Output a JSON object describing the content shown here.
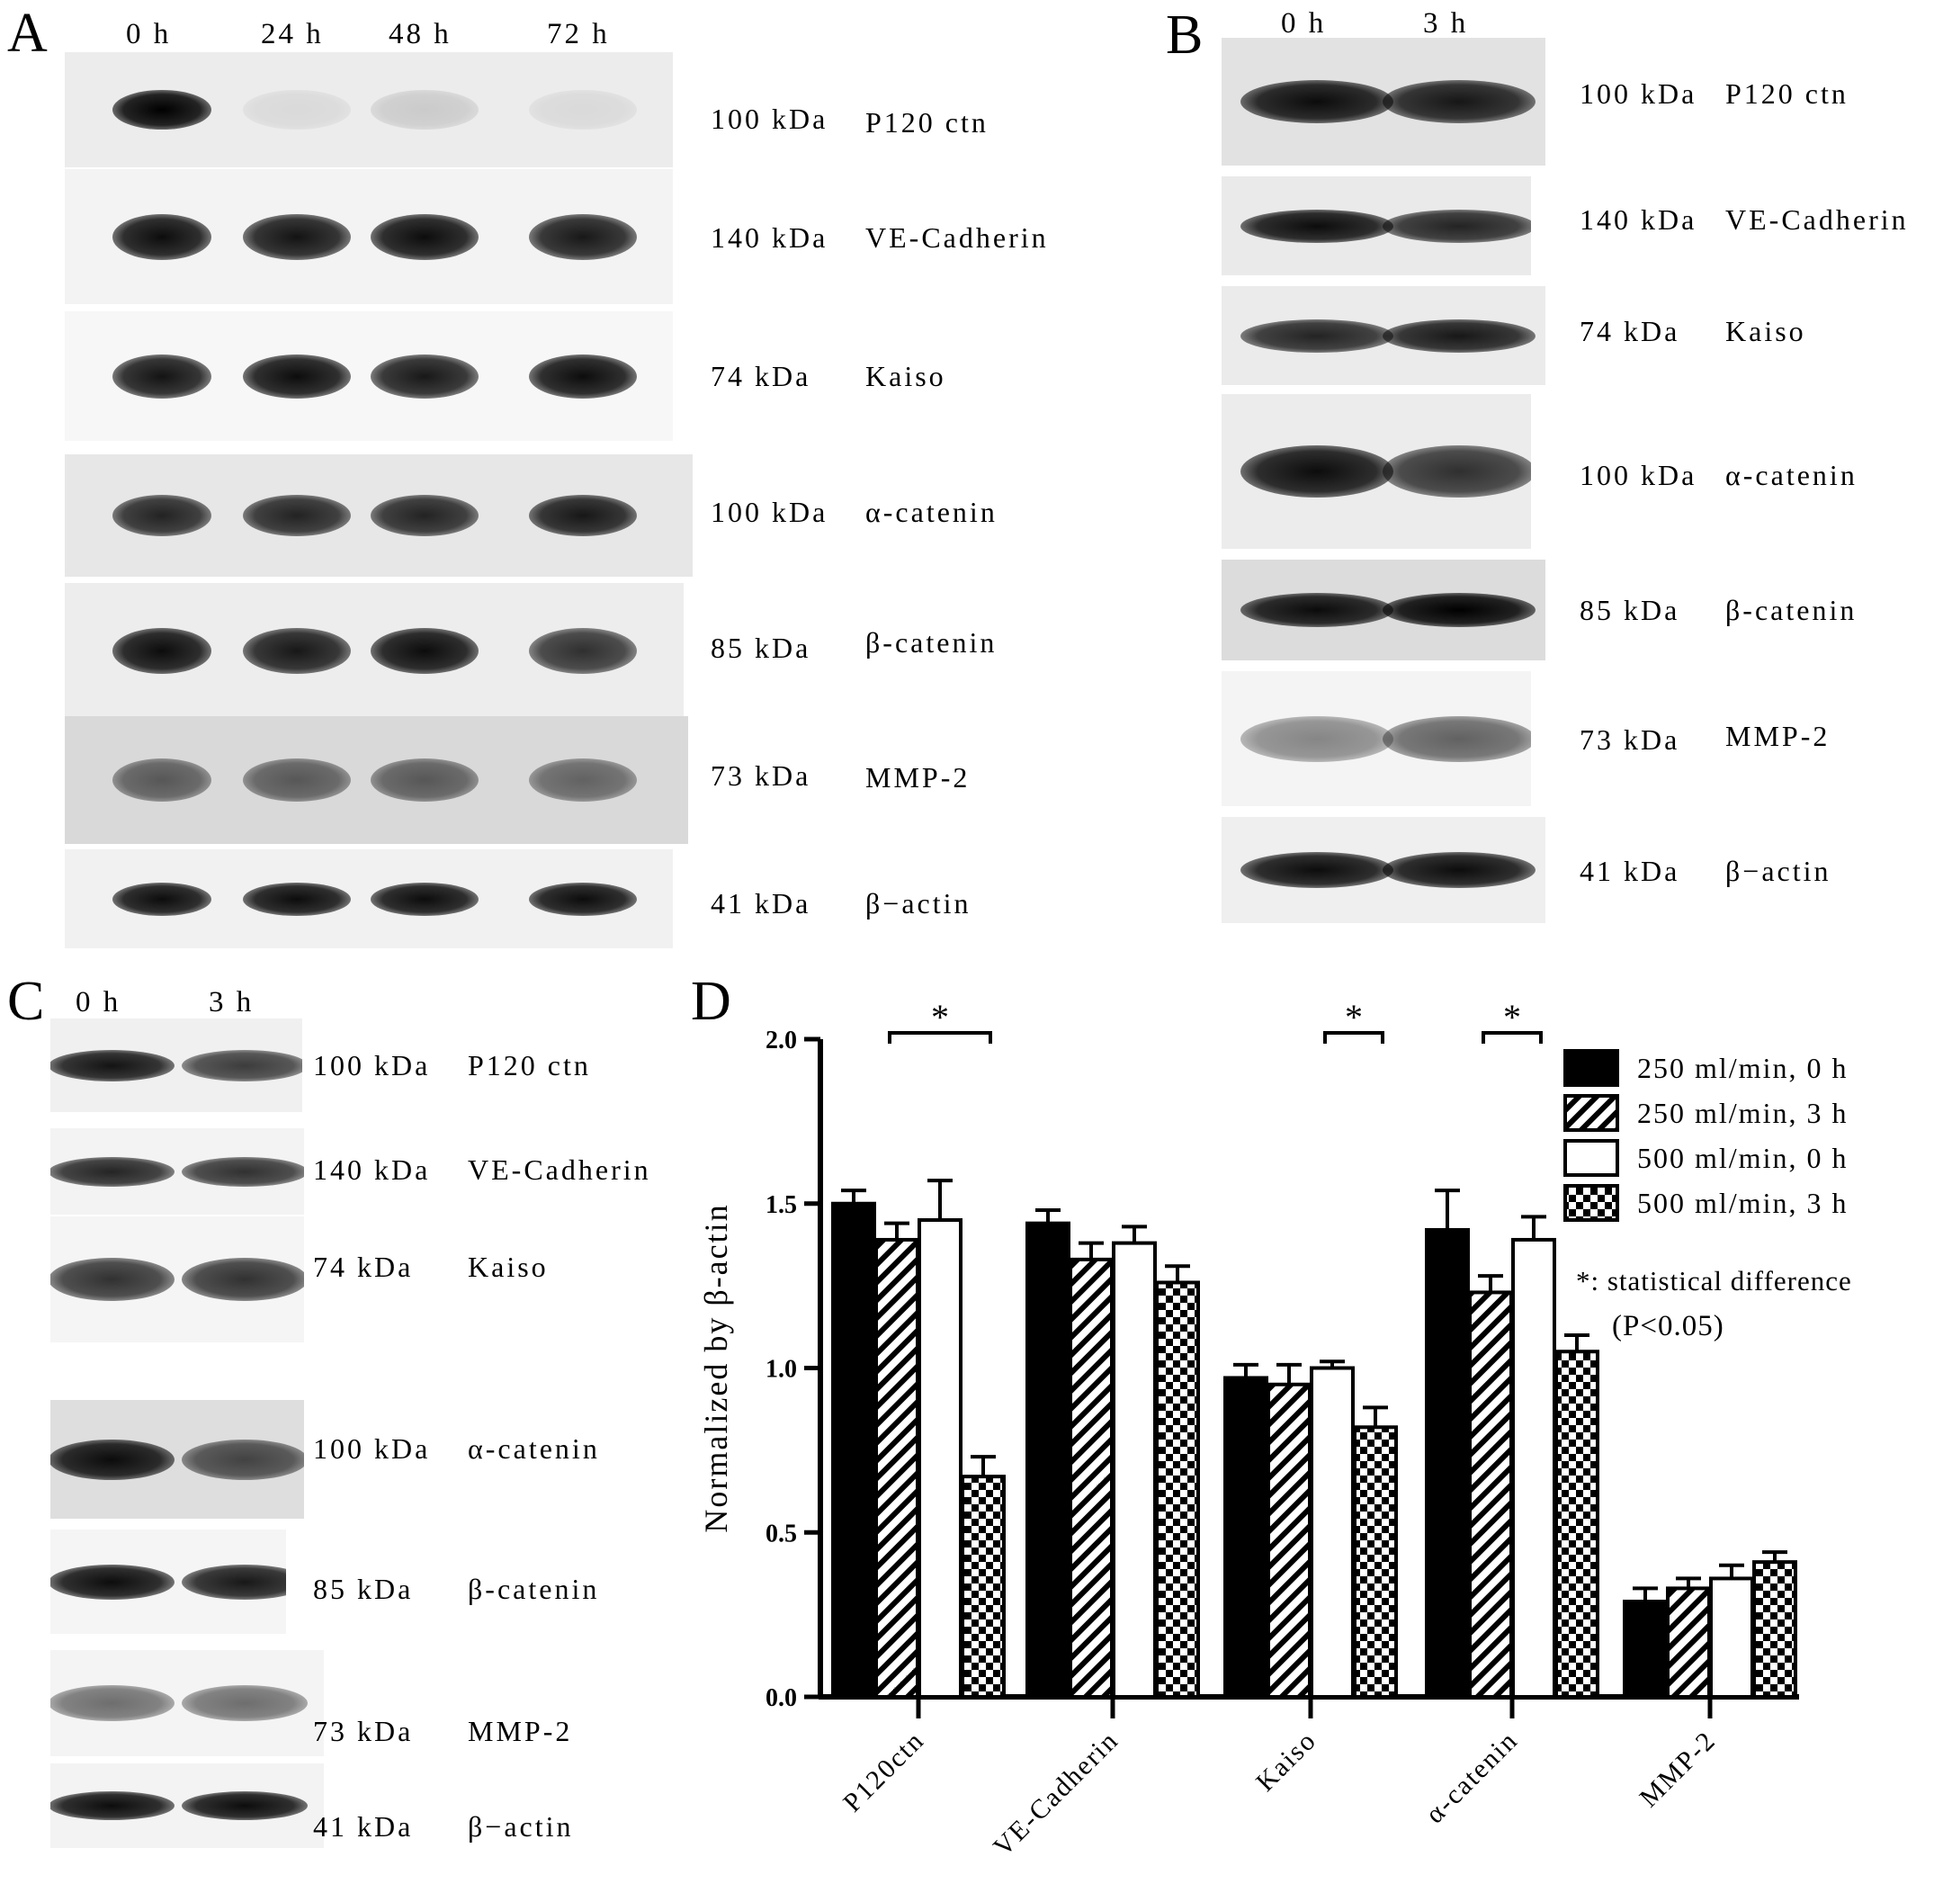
{
  "panels": {
    "A": {
      "letter": "A",
      "lanes": [
        "0 h",
        "24 h",
        "48 h",
        "72 h"
      ],
      "blots": [
        {
          "kda": "100 kDa",
          "protein": "P120 ctn",
          "bg": "#ececec",
          "band_intensity": [
            1.0,
            0.08,
            0.14,
            0.08
          ]
        },
        {
          "kda": "140 kDa",
          "protein": "VE-Cadherin",
          "bg": "#f3f3f3",
          "band_intensity": [
            0.95,
            0.92,
            0.95,
            0.9
          ]
        },
        {
          "kda": "74 kDa",
          "protein": "Kaiso",
          "bg": "#f7f7f7",
          "band_intensity": [
            0.92,
            0.95,
            0.9,
            0.95
          ]
        },
        {
          "kda": "100 kDa",
          "protein": "α-catenin",
          "bg": "#e7e7e7",
          "band_intensity": [
            0.85,
            0.85,
            0.85,
            0.9
          ]
        },
        {
          "kda": "85 kDa",
          "protein": "β-catenin",
          "bg": "#ededed",
          "band_intensity": [
            0.95,
            0.9,
            0.95,
            0.8
          ]
        },
        {
          "kda": "73 kDa",
          "protein": "MMP-2",
          "bg": "#d9d9d9",
          "band_intensity": [
            0.6,
            0.6,
            0.6,
            0.55
          ]
        },
        {
          "kda": "41 kDa",
          "protein": "β−actin",
          "bg": "#f1f1f1",
          "band_intensity": [
            0.95,
            0.95,
            0.95,
            0.95
          ]
        }
      ]
    },
    "B": {
      "letter": "B",
      "lanes": [
        "0 h",
        "3 h"
      ],
      "blots": [
        {
          "kda": "100 kDa",
          "protein": "P120 ctn",
          "bg": "#e2e2e2",
          "band_intensity": [
            0.95,
            0.9
          ]
        },
        {
          "kda": "140 kDa",
          "protein": "VE-Cadherin",
          "bg": "#eaeaea",
          "band_intensity": [
            0.95,
            0.85
          ]
        },
        {
          "kda": "74 kDa",
          "protein": "Kaiso",
          "bg": "#ebebeb",
          "band_intensity": [
            0.85,
            0.9
          ]
        },
        {
          "kda": "100 kDa",
          "protein": "α-catenin",
          "bg": "#ececec",
          "band_intensity": [
            0.95,
            0.8
          ]
        },
        {
          "kda": "85 kDa",
          "protein": "β-catenin",
          "bg": "#dcdcdc",
          "band_intensity": [
            0.95,
            1.0
          ]
        },
        {
          "kda": "73 kDa",
          "protein": "MMP-2",
          "bg": "#f4f4f4",
          "band_intensity": [
            0.45,
            0.6
          ]
        },
        {
          "kda": "41 kDa",
          "protein": "β−actin",
          "bg": "#efefef",
          "band_intensity": [
            0.95,
            0.95
          ]
        }
      ]
    },
    "C": {
      "letter": "C",
      "lanes": [
        "0 h",
        "3 h"
      ],
      "blots": [
        {
          "kda": "100 kDa",
          "protein": "P120 ctn",
          "bg": "#f0f0f0",
          "band_intensity": [
            0.92,
            0.75
          ]
        },
        {
          "kda": "140 kDa",
          "protein": "VE-Cadherin",
          "bg": "#f3f3f3",
          "band_intensity": [
            0.85,
            0.8
          ]
        },
        {
          "kda": "74 kDa",
          "protein": "Kaiso",
          "bg": "#f5f5f5",
          "band_intensity": [
            0.8,
            0.8
          ]
        },
        {
          "kda": "100 kDa",
          "protein": "α-catenin",
          "bg": "#dedede",
          "band_intensity": [
            0.95,
            0.7
          ]
        },
        {
          "kda": "85 kDa",
          "protein": "β-catenin",
          "bg": "#f5f5f5",
          "band_intensity": [
            0.95,
            0.9
          ]
        },
        {
          "kda": "73 kDa",
          "protein": "MMP-2",
          "bg": "#f4f4f4",
          "band_intensity": [
            0.55,
            0.55
          ]
        },
        {
          "kda": "41 kDa",
          "protein": "β−actin",
          "bg": "#f3f3f3",
          "band_intensity": [
            0.95,
            0.95
          ]
        }
      ]
    },
    "D": {
      "letter": "D"
    }
  },
  "chart_data": {
    "type": "bar",
    "categories": [
      "P120ctn",
      "VE-Cadherin",
      "Kaiso",
      "α-catenin",
      "MMP-2"
    ],
    "series": [
      {
        "name": "250 ml/min, 0 h",
        "fill": "solid",
        "values": [
          1.5,
          1.44,
          0.97,
          1.42,
          0.29
        ],
        "errors": [
          0.04,
          0.04,
          0.04,
          0.12,
          0.04
        ]
      },
      {
        "name": "250 ml/min, 3 h",
        "fill": "hatch",
        "values": [
          1.39,
          1.33,
          0.95,
          1.23,
          0.33
        ],
        "errors": [
          0.05,
          0.05,
          0.06,
          0.05,
          0.03
        ]
      },
      {
        "name": "500 ml/min, 0 h",
        "fill": "open",
        "values": [
          1.45,
          1.38,
          1.0,
          1.39,
          0.36
        ],
        "errors": [
          0.12,
          0.05,
          0.02,
          0.07,
          0.04
        ]
      },
      {
        "name": "500 ml/min, 3 h",
        "fill": "checker",
        "values": [
          0.67,
          1.26,
          0.82,
          1.05,
          0.41
        ],
        "errors": [
          0.06,
          0.05,
          0.06,
          0.05,
          0.03
        ]
      }
    ],
    "ylabel": "Normalized by β-actin",
    "ylim": [
      0,
      2.0
    ],
    "yticks": [
      "0.0",
      "0.5",
      "1.0",
      "1.5",
      "2.0"
    ],
    "significance": [
      {
        "category": "P120ctn",
        "between": [
          "250 ml/min, 3 h",
          "500 ml/min, 3 h"
        ],
        "symbol": "*"
      },
      {
        "category": "Kaiso",
        "between": [
          "500 ml/min, 0 h",
          "500 ml/min, 3 h"
        ],
        "symbol": "*"
      },
      {
        "category": "α-catenin",
        "between": [
          "250 ml/min, 3 h",
          "500 ml/min, 0 h"
        ],
        "symbol": "*"
      }
    ],
    "legend": {
      "position": "top-right",
      "note_line1": "*: statistical difference",
      "note_line2": "(P<0.05)"
    }
  }
}
